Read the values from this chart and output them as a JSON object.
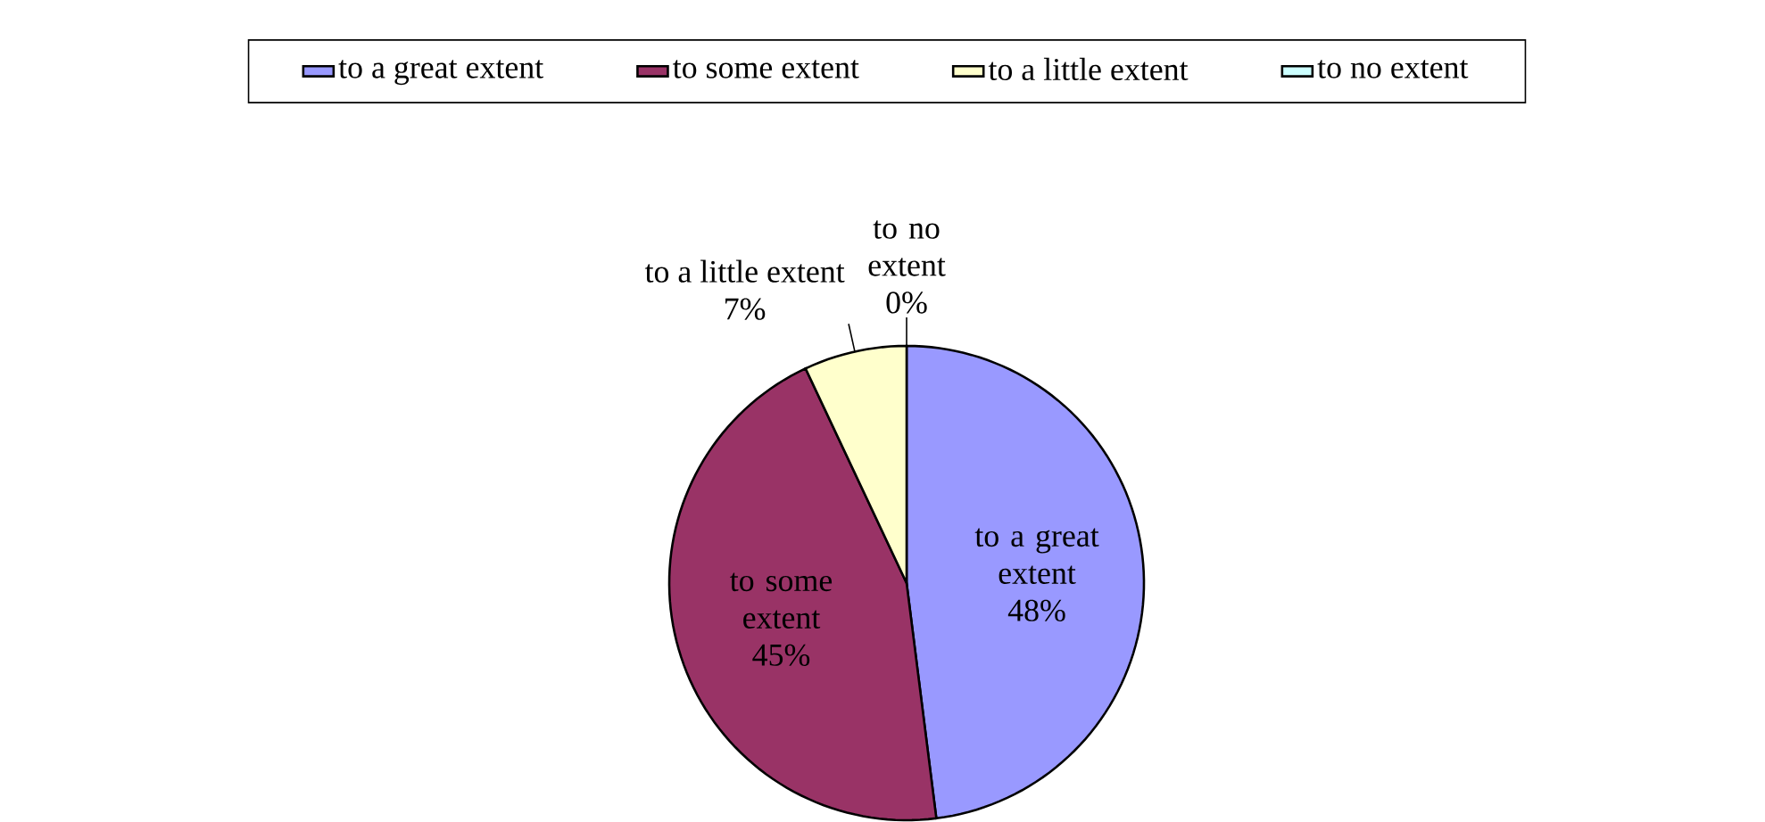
{
  "chart_data": {
    "type": "pie",
    "categories": [
      "to a great extent",
      "to some extent",
      "to a little extent",
      "to no extent"
    ],
    "values": [
      48,
      45,
      7,
      0
    ],
    "value_labels": [
      "48%",
      "45%",
      "7%",
      "0%"
    ],
    "colors": [
      "#9999ff",
      "#993366",
      "#ffffcc",
      "#ccffff"
    ],
    "legend": "top"
  }
}
